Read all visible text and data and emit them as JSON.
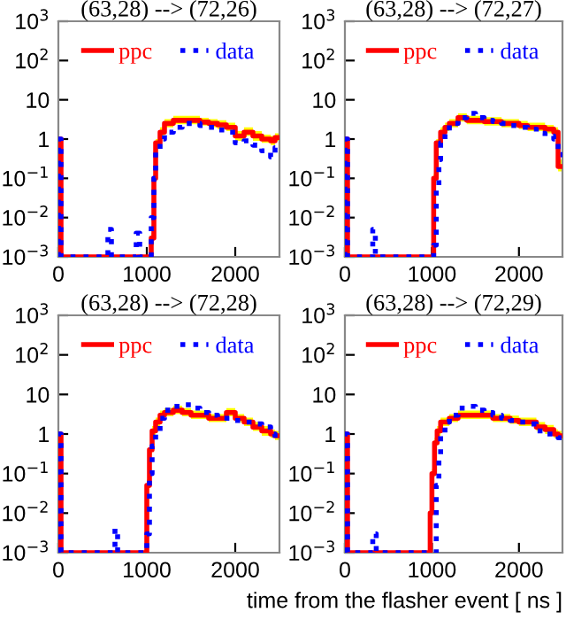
{
  "chart_data": [
    {
      "type": "step",
      "title": "(63,28) --> (72,26)",
      "log": "y",
      "xlim": [
        0,
        2500
      ],
      "ylim": [
        0.001,
        1000
      ],
      "xticks": [
        0,
        1000,
        2000
      ],
      "yticks": [
        {
          "value": 0.001,
          "label": "10$^{−3}$"
        },
        {
          "value": 0.01,
          "label": "10$^{−2}$"
        },
        {
          "value": 0.1,
          "label": "10$^{−1}$"
        },
        1,
        10,
        {
          "value": 100,
          "label": "10$^{2}$"
        },
        {
          "value": 1000,
          "label": "10$^{3}$"
        }
      ],
      "legend": "top",
      "grid": false,
      "series": [
        {
          "name": "ppc",
          "color": "#ff0000",
          "line_style": "solid",
          "x": [
            0,
            30,
            1050,
            1080,
            1100,
            1150,
            1200,
            1300,
            1400,
            1500,
            1600,
            1700,
            1800,
            1900,
            2000,
            2100,
            2200,
            2300,
            2400,
            2450,
            2500
          ],
          "values": [
            1,
            0.001,
            0.003,
            0.1,
            0.8,
            1.5,
            2.5,
            3,
            3,
            3,
            2.7,
            2.5,
            2.3,
            2.0,
            1.2,
            1.5,
            1.2,
            1.0,
            0.9,
            1.1,
            1.1
          ],
          "lower": [
            null,
            null,
            0.002,
            0.08,
            0.6,
            1.2,
            2.0,
            2.4,
            2.4,
            2.4,
            2.2,
            2.0,
            1.8,
            1.6,
            0.9,
            1.2,
            0.9,
            0.8,
            0.7,
            0.9,
            0.9
          ],
          "upper": [
            null,
            null,
            0.004,
            0.13,
            1.0,
            2.0,
            3.2,
            3.9,
            3.9,
            3.9,
            3.5,
            3.2,
            3.0,
            2.6,
            1.6,
            2.0,
            1.6,
            1.3,
            1.2,
            1.4,
            1.4
          ]
        },
        {
          "name": "data",
          "color": "#0000ff",
          "line_style": "dotted",
          "x": [
            0,
            30,
            560,
            600,
            880,
            920,
            1050,
            1080,
            1100,
            1150,
            1200,
            1300,
            1400,
            1500,
            1600,
            1700,
            1800,
            1900,
            2000,
            2100,
            2200,
            2300,
            2400,
            2450,
            2500
          ],
          "values": [
            1,
            0.001,
            0.005,
            0.001,
            0.004,
            0.001,
            0.01,
            0.1,
            0.5,
            1.0,
            1.5,
            2.0,
            2.5,
            2.5,
            2.2,
            2.0,
            1.7,
            1.5,
            0.8,
            0.9,
            0.7,
            0.5,
            0.35,
            0.6,
            0.6
          ]
        }
      ]
    },
    {
      "type": "step",
      "title": "(63,28) --> (72,27)",
      "log": "y",
      "xlim": [
        0,
        2500
      ],
      "ylim": [
        0.001,
        1000
      ],
      "xticks": [
        0,
        1000,
        2000
      ],
      "yticks": [
        {
          "value": 0.001,
          "label": "10$^{−3}$"
        },
        {
          "value": 0.01,
          "label": "10$^{−2}$"
        },
        {
          "value": 0.1,
          "label": "10$^{−1}$"
        },
        1,
        10,
        {
          "value": 100,
          "label": "10$^{2}$"
        },
        {
          "value": 1000,
          "label": "10$^{3}$"
        }
      ],
      "legend": "top",
      "grid": false,
      "series": [
        {
          "name": "ppc",
          "color": "#ff0000",
          "line_style": "solid",
          "x": [
            0,
            30,
            1020,
            1050,
            1100,
            1150,
            1200,
            1300,
            1400,
            1500,
            1600,
            1700,
            1800,
            1900,
            2000,
            2100,
            2200,
            2300,
            2400,
            2450,
            2500
          ],
          "values": [
            1,
            0.001,
            0.1,
            0.8,
            1.5,
            2.0,
            2.5,
            3.5,
            3.0,
            3.0,
            2.8,
            2.8,
            2.5,
            2.5,
            2.2,
            2.0,
            2.0,
            1.8,
            1.5,
            0.2,
            0.2
          ],
          "lower": [
            null,
            null,
            0.08,
            0.6,
            1.2,
            1.6,
            2.0,
            2.8,
            2.4,
            2.4,
            2.2,
            2.2,
            2.0,
            2.0,
            1.8,
            1.6,
            1.6,
            1.4,
            1.2,
            0.15,
            0.15
          ],
          "upper": [
            null,
            null,
            0.13,
            1.0,
            2.0,
            2.6,
            3.2,
            4.5,
            3.9,
            3.9,
            3.6,
            3.6,
            3.2,
            3.2,
            2.9,
            2.6,
            2.6,
            2.3,
            2.0,
            0.3,
            0.3
          ]
        },
        {
          "name": "data",
          "color": "#0000ff",
          "line_style": "dotted",
          "x": [
            0,
            30,
            320,
            350,
            1020,
            1050,
            1080,
            1100,
            1150,
            1200,
            1300,
            1400,
            1500,
            1600,
            1700,
            1800,
            1900,
            2000,
            2100,
            2200,
            2300,
            2400,
            2450,
            2500
          ],
          "values": [
            1,
            0.001,
            0.005,
            0.001,
            0.002,
            0.05,
            0.3,
            0.8,
            1.5,
            2.5,
            3.5,
            4.5,
            3.5,
            3.0,
            2.8,
            2.5,
            2.2,
            2.0,
            1.8,
            1.4,
            1.2,
            1.0,
            0.4,
            0.4
          ]
        }
      ]
    },
    {
      "type": "step",
      "title": "(63,28) --> (72,28)",
      "log": "y",
      "xlim": [
        0,
        2500
      ],
      "ylim": [
        0.001,
        1000
      ],
      "xticks": [
        0,
        1000,
        2000
      ],
      "yticks": [
        {
          "value": 0.001,
          "label": "10$^{−3}$"
        },
        {
          "value": 0.01,
          "label": "10$^{−2}$"
        },
        {
          "value": 0.1,
          "label": "10$^{−1}$"
        },
        1,
        10,
        {
          "value": 100,
          "label": "10$^{2}$"
        },
        {
          "value": 1000,
          "label": "10$^{3}$"
        }
      ],
      "legend": "top",
      "grid": false,
      "series": [
        {
          "name": "ppc",
          "color": "#ff0000",
          "line_style": "solid",
          "x": [
            0,
            30,
            1000,
            1030,
            1060,
            1100,
            1150,
            1200,
            1300,
            1400,
            1500,
            1600,
            1700,
            1800,
            1900,
            2000,
            2100,
            2200,
            2300,
            2400,
            2450,
            2500
          ],
          "values": [
            1,
            0.001,
            0.05,
            0.4,
            1.2,
            2.0,
            3.0,
            3.5,
            4,
            3.5,
            3,
            3,
            2.5,
            2.5,
            3.5,
            2.5,
            2.0,
            1.5,
            1.2,
            1.0,
            0.9,
            0.9
          ],
          "lower": [
            null,
            null,
            0.04,
            0.3,
            0.9,
            1.6,
            2.4,
            2.8,
            3.2,
            2.8,
            2.4,
            2.4,
            2.0,
            2.0,
            2.8,
            2.0,
            1.6,
            1.2,
            0.9,
            0.8,
            0.7,
            0.7
          ],
          "upper": [
            null,
            null,
            0.07,
            0.5,
            1.6,
            2.6,
            3.9,
            4.5,
            5.2,
            4.5,
            3.9,
            3.9,
            3.2,
            3.2,
            4.5,
            3.2,
            2.6,
            2.0,
            1.6,
            1.3,
            1.2,
            1.2
          ]
        },
        {
          "name": "data",
          "color": "#0000ff",
          "line_style": "dotted",
          "x": [
            0,
            30,
            640,
            670,
            1000,
            1030,
            1060,
            1100,
            1150,
            1200,
            1300,
            1400,
            1500,
            1600,
            1700,
            1800,
            1900,
            2000,
            2100,
            2200,
            2300,
            2400,
            2450,
            2500
          ],
          "values": [
            1,
            0.001,
            0.004,
            0.001,
            0.003,
            0.1,
            0.5,
            1.0,
            2.5,
            4,
            5,
            5.5,
            4.5,
            3.5,
            3,
            2.5,
            2.5,
            2.2,
            2.0,
            1.8,
            1.5,
            1.0,
            0.7,
            0.7
          ]
        }
      ]
    },
    {
      "type": "step",
      "title": "(63,28) --> (72,29)",
      "xlabel": "time from the flasher event [ ns ]",
      "log": "y",
      "xlim": [
        0,
        2500
      ],
      "ylim": [
        0.001,
        1000
      ],
      "xticks": [
        0,
        1000,
        2000
      ],
      "yticks": [
        {
          "value": 0.001,
          "label": "10$^{−3}$"
        },
        {
          "value": 0.01,
          "label": "10$^{−2}$"
        },
        {
          "value": 0.1,
          "label": "10$^{−1}$"
        },
        1,
        10,
        {
          "value": 100,
          "label": "10$^{2}$"
        },
        {
          "value": 1000,
          "label": "10$^{3}$"
        }
      ],
      "legend": "top",
      "grid": false,
      "series": [
        {
          "name": "ppc",
          "color": "#ff0000",
          "line_style": "solid",
          "x": [
            0,
            30,
            980,
            1000,
            1030,
            1060,
            1100,
            1200,
            1300,
            1400,
            1500,
            1600,
            1700,
            1800,
            1900,
            2000,
            2100,
            2200,
            2300,
            2400,
            2450,
            2500
          ],
          "values": [
            1,
            0.001,
            0.01,
            0.1,
            0.6,
            1.2,
            2.0,
            2.5,
            3,
            3,
            3,
            3,
            2.5,
            2.5,
            2.2,
            2.0,
            2.0,
            1.5,
            1.3,
            1.0,
            0.9,
            0.9
          ],
          "lower": [
            null,
            null,
            0.008,
            0.08,
            0.5,
            0.9,
            1.6,
            2.0,
            2.4,
            2.4,
            2.4,
            2.4,
            2.0,
            2.0,
            1.8,
            1.6,
            1.6,
            1.2,
            1.0,
            0.8,
            0.7,
            0.7
          ],
          "upper": [
            null,
            null,
            0.013,
            0.13,
            0.8,
            1.6,
            2.6,
            3.2,
            3.9,
            3.9,
            3.9,
            3.9,
            3.2,
            3.2,
            2.9,
            2.6,
            2.6,
            2.0,
            1.7,
            1.3,
            1.2,
            1.2
          ]
        },
        {
          "name": "data",
          "color": "#0000ff",
          "line_style": "dotted",
          "x": [
            0,
            30,
            320,
            360,
            1030,
            1050,
            1080,
            1100,
            1150,
            1200,
            1300,
            1400,
            1500,
            1600,
            1700,
            1800,
            1900,
            2000,
            2100,
            2200,
            2300,
            2400,
            2450,
            2500
          ],
          "values": [
            1,
            0.001,
            0.003,
            0.001,
            0.001,
            0.05,
            0.3,
            1.0,
            2.0,
            3.0,
            4.5,
            5,
            4.0,
            3.5,
            3,
            2.5,
            2.2,
            2,
            1.8,
            1.2,
            1.0,
            0.9,
            0.8,
            0.8
          ]
        }
      ]
    }
  ]
}
